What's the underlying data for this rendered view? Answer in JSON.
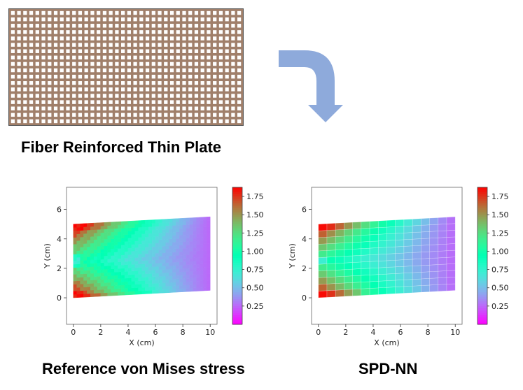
{
  "captions": {
    "top": "Fiber Reinforced Thin Plate",
    "left": "Reference von Mises stress",
    "right": "SPD-NN"
  },
  "colors": {
    "arrow": "#8eaadb",
    "fiber_plate_fill": "#a07f6a",
    "fiber_cell": "#ffffff",
    "fiber_border": "#555555"
  },
  "fiber_plate": {
    "rows": 18,
    "cols": 38
  },
  "chart_data": [
    {
      "type": "heatmap",
      "name": "Reference von Mises stress",
      "xlabel": "X (cm)",
      "ylabel": "Y (cm)",
      "xlim": [
        -0.5,
        10.5
      ],
      "ylim": [
        -1.8,
        7.5
      ],
      "xticks": [
        "0",
        "2",
        "4",
        "6",
        "8",
        "10"
      ],
      "yticks": [
        "0",
        "2",
        "4",
        "6"
      ],
      "domain_corners": [
        [
          0,
          0
        ],
        [
          10,
          0.5
        ],
        [
          10,
          5.5
        ],
        [
          0,
          5
        ]
      ],
      "colorbar": {
        "min": 0.0,
        "max": 1.875,
        "ticks": [
          "0.25",
          "0.50",
          "0.75",
          "1.00",
          "1.25",
          "1.50",
          "1.75"
        ],
        "colormap": "rainbow"
      },
      "mesh": "fine"
    },
    {
      "type": "heatmap",
      "name": "SPD-NN",
      "xlabel": "X (cm)",
      "ylabel": "Y (cm)",
      "xlim": [
        -0.5,
        10.5
      ],
      "ylim": [
        -1.8,
        7.5
      ],
      "xticks": [
        "0",
        "2",
        "4",
        "6",
        "8",
        "10"
      ],
      "yticks": [
        "0",
        "2",
        "4",
        "6"
      ],
      "domain_corners": [
        [
          0,
          0
        ],
        [
          10,
          0.5
        ],
        [
          10,
          5.5
        ],
        [
          0,
          5
        ]
      ],
      "colorbar": {
        "min": 0.0,
        "max": 1.875,
        "ticks": [
          "0.25",
          "0.50",
          "0.75",
          "1.00",
          "1.25",
          "1.50",
          "1.75"
        ],
        "colormap": "rainbow"
      },
      "mesh": "coarse"
    }
  ]
}
